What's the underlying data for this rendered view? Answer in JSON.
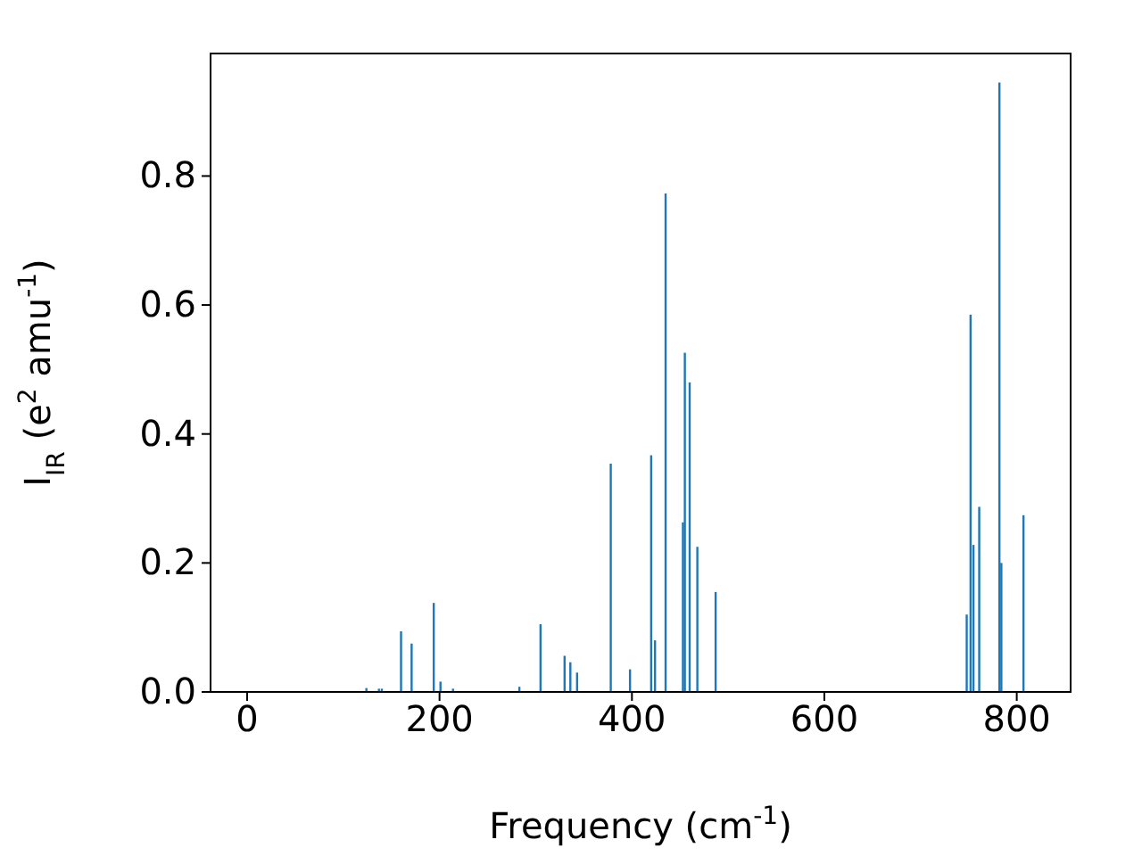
{
  "chart_data": {
    "type": "bar",
    "xlabel": "Frequency (cm$^{-1}$)",
    "ylabel": "I$_{IR}$ (e$^{2}$ amu$^{-1}$)",
    "x": [
      124,
      137,
      140,
      160,
      171,
      194,
      201,
      214,
      283,
      305,
      330,
      336,
      343,
      378,
      398,
      420,
      424,
      435,
      453,
      455,
      460,
      468,
      487,
      748,
      752,
      755,
      761,
      782,
      784,
      807
    ],
    "series": [
      {
        "color": "#1f77b4",
        "values": [
          0.006,
          0.005,
          0.005,
          0.094,
          0.075,
          0.138,
          0.016,
          0.005,
          0.008,
          0.105,
          0.056,
          0.046,
          0.03,
          0.354,
          0.035,
          0.367,
          0.08,
          0.773,
          0.263,
          0.526,
          0.48,
          0.225,
          0.155,
          0.12,
          0.585,
          0.228,
          0.287,
          0.945,
          0.2,
          0.274
        ]
      }
    ],
    "xlim": [
      -38,
      856
    ],
    "ylim": [
      0,
      0.99
    ],
    "xticks": [
      0,
      200,
      400,
      600,
      800
    ],
    "yticks": [
      {
        "value": 0,
        "label": "0.0"
      },
      0.2,
      0.4,
      0.6,
      0.8
    ],
    "grid": false
  }
}
